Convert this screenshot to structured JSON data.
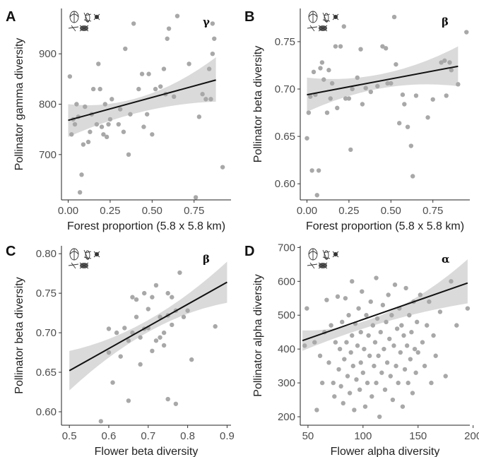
{
  "chart_data": [
    {
      "type": "scatter",
      "panel": "A",
      "corner_label": "γ",
      "xlabel": "Forest proportion (5.8 x 5.8 km)",
      "ylabel": "Pollinator gamma diversity",
      "xlim": [
        -0.04,
        0.97
      ],
      "ylim": [
        610,
        990
      ],
      "xticks": [
        0.0,
        0.25,
        0.5,
        0.75
      ],
      "xtick_labels": [
        "0.00",
        "0.25",
        "0.50",
        "0.75"
      ],
      "yticks": [
        700,
        800,
        900
      ],
      "yticks_labels": [
        "700",
        "800",
        "900"
      ],
      "fit": {
        "x0": 0.0,
        "y0": 768,
        "x1": 0.88,
        "y1": 848,
        "ci_low0": 735,
        "ci_high0": 800,
        "ci_low_mid": 785,
        "ci_high_mid": 815,
        "ci_low1": 805,
        "ci_high1": 893
      },
      "points": [
        [
          0.01,
          855
        ],
        [
          0.02,
          740
        ],
        [
          0.03,
          770
        ],
        [
          0.04,
          760
        ],
        [
          0.05,
          800
        ],
        [
          0.06,
          775
        ],
        [
          0.07,
          625
        ],
        [
          0.08,
          660
        ],
        [
          0.09,
          720
        ],
        [
          0.1,
          795
        ],
        [
          0.12,
          725
        ],
        [
          0.13,
          745
        ],
        [
          0.14,
          780
        ],
        [
          0.15,
          830
        ],
        [
          0.17,
          760
        ],
        [
          0.18,
          880
        ],
        [
          0.19,
          830
        ],
        [
          0.2,
          755
        ],
        [
          0.21,
          740
        ],
        [
          0.22,
          800
        ],
        [
          0.23,
          735
        ],
        [
          0.24,
          760
        ],
        [
          0.25,
          770
        ],
        [
          0.26,
          810
        ],
        [
          0.3,
          760
        ],
        [
          0.31,
          790
        ],
        [
          0.33,
          745
        ],
        [
          0.34,
          910
        ],
        [
          0.36,
          700
        ],
        [
          0.37,
          780
        ],
        [
          0.39,
          960
        ],
        [
          0.42,
          830
        ],
        [
          0.44,
          860
        ],
        [
          0.45,
          755
        ],
        [
          0.47,
          780
        ],
        [
          0.48,
          860
        ],
        [
          0.5,
          740
        ],
        [
          0.52,
          830
        ],
        [
          0.55,
          835
        ],
        [
          0.57,
          870
        ],
        [
          0.58,
          820
        ],
        [
          0.59,
          930
        ],
        [
          0.6,
          950
        ],
        [
          0.63,
          815
        ],
        [
          0.65,
          975
        ],
        [
          0.72,
          880
        ],
        [
          0.76,
          615
        ],
        [
          0.78,
          775
        ],
        [
          0.8,
          820
        ],
        [
          0.82,
          810
        ],
        [
          0.84,
          870
        ],
        [
          0.85,
          810
        ],
        [
          0.86,
          900
        ],
        [
          0.86,
          960
        ],
        [
          0.87,
          930
        ],
        [
          0.92,
          675
        ]
      ]
    },
    {
      "type": "scatter",
      "panel": "B",
      "corner_label": "β",
      "xlabel": "Forest proportion (5.8 x 5.8 km)",
      "ylabel": "Pollinator beta diversity",
      "xlim": [
        -0.04,
        0.97
      ],
      "ylim": [
        0.583,
        0.785
      ],
      "xticks": [
        0.0,
        0.25,
        0.5,
        0.75
      ],
      "xtick_labels": [
        "0.00",
        "0.25",
        "0.50",
        "0.75"
      ],
      "yticks": [
        0.6,
        0.65,
        0.7,
        0.75
      ],
      "yticks_labels": [
        "0.60",
        "0.65",
        "0.70",
        "0.75"
      ],
      "fit": {
        "x0": 0.0,
        "y0": 0.694,
        "x1": 0.9,
        "y1": 0.724,
        "ci_low0": 0.676,
        "ci_high0": 0.712,
        "ci_low_mid": 0.701,
        "ci_high_mid": 0.716,
        "ci_low1": 0.703,
        "ci_high1": 0.745
      },
      "points": [
        [
          0.0,
          0.648
        ],
        [
          0.01,
          0.675
        ],
        [
          0.02,
          0.692
        ],
        [
          0.03,
          0.614
        ],
        [
          0.04,
          0.718
        ],
        [
          0.05,
          0.694
        ],
        [
          0.06,
          0.588
        ],
        [
          0.07,
          0.614
        ],
        [
          0.08,
          0.722
        ],
        [
          0.09,
          0.728
        ],
        [
          0.1,
          0.71
        ],
        [
          0.12,
          0.675
        ],
        [
          0.13,
          0.72
        ],
        [
          0.14,
          0.69
        ],
        [
          0.15,
          0.706
        ],
        [
          0.17,
          0.745
        ],
        [
          0.18,
          0.68
        ],
        [
          0.2,
          0.745
        ],
        [
          0.22,
          0.766
        ],
        [
          0.23,
          0.69
        ],
        [
          0.25,
          0.69
        ],
        [
          0.26,
          0.636
        ],
        [
          0.27,
          0.7
        ],
        [
          0.3,
          0.712
        ],
        [
          0.32,
          0.742
        ],
        [
          0.33,
          0.684
        ],
        [
          0.35,
          0.701
        ],
        [
          0.38,
          0.697
        ],
        [
          0.42,
          0.703
        ],
        [
          0.45,
          0.745
        ],
        [
          0.47,
          0.743
        ],
        [
          0.48,
          0.706
        ],
        [
          0.5,
          0.706
        ],
        [
          0.52,
          0.776
        ],
        [
          0.53,
          0.726
        ],
        [
          0.55,
          0.664
        ],
        [
          0.57,
          0.694
        ],
        [
          0.58,
          0.684
        ],
        [
          0.6,
          0.66
        ],
        [
          0.62,
          0.64
        ],
        [
          0.63,
          0.608
        ],
        [
          0.65,
          0.693
        ],
        [
          0.72,
          0.67
        ],
        [
          0.75,
          0.689
        ],
        [
          0.8,
          0.728
        ],
        [
          0.82,
          0.73
        ],
        [
          0.83,
          0.693
        ],
        [
          0.85,
          0.728
        ],
        [
          0.86,
          0.72
        ],
        [
          0.9,
          0.705
        ],
        [
          0.95,
          0.76
        ]
      ]
    },
    {
      "type": "scatter",
      "panel": "C",
      "corner_label": "β",
      "xlabel": "Flower beta diversity",
      "ylabel": "Pollinator beta diversity",
      "xlim": [
        0.48,
        0.91
      ],
      "ylim": [
        0.583,
        0.81
      ],
      "xticks": [
        0.5,
        0.6,
        0.7,
        0.8,
        0.9
      ],
      "xtick_labels": [
        "0.5",
        "0.6",
        "0.7",
        "0.8",
        "0.9"
      ],
      "yticks": [
        0.6,
        0.65,
        0.7,
        0.75,
        0.8
      ],
      "yticks_labels": [
        "0.60",
        "0.65",
        "0.70",
        "0.75",
        "0.80"
      ],
      "fit": {
        "x0": 0.5,
        "y0": 0.652,
        "x1": 0.9,
        "y1": 0.764,
        "ci_low0": 0.627,
        "ci_high0": 0.677,
        "ci_low_mid": 0.701,
        "ci_high_mid": 0.716,
        "ci_low1": 0.738,
        "ci_high1": 0.79
      },
      "points": [
        [
          0.58,
          0.588
        ],
        [
          0.6,
          0.675
        ],
        [
          0.61,
          0.637
        ],
        [
          0.6,
          0.705
        ],
        [
          0.62,
          0.7
        ],
        [
          0.63,
          0.67
        ],
        [
          0.64,
          0.706
        ],
        [
          0.65,
          0.69
        ],
        [
          0.65,
          0.614
        ],
        [
          0.66,
          0.745
        ],
        [
          0.66,
          0.7
        ],
        [
          0.67,
          0.742
        ],
        [
          0.67,
          0.72
        ],
        [
          0.68,
          0.66
        ],
        [
          0.68,
          0.694
        ],
        [
          0.69,
          0.705
        ],
        [
          0.69,
          0.75
        ],
        [
          0.7,
          0.73
        ],
        [
          0.7,
          0.706
        ],
        [
          0.71,
          0.745
        ],
        [
          0.71,
          0.677
        ],
        [
          0.72,
          0.69
        ],
        [
          0.72,
          0.76
        ],
        [
          0.73,
          0.72
        ],
        [
          0.73,
          0.694
        ],
        [
          0.74,
          0.7
        ],
        [
          0.74,
          0.684
        ],
        [
          0.75,
          0.75
        ],
        [
          0.75,
          0.722
        ],
        [
          0.75,
          0.616
        ],
        [
          0.76,
          0.745
        ],
        [
          0.76,
          0.71
        ],
        [
          0.77,
          0.728
        ],
        [
          0.77,
          0.61
        ],
        [
          0.78,
          0.776
        ],
        [
          0.79,
          0.72
        ],
        [
          0.8,
          0.728
        ],
        [
          0.81,
          0.666
        ],
        [
          0.87,
          0.708
        ]
      ]
    },
    {
      "type": "scatter",
      "panel": "D",
      "corner_label": "α",
      "xlabel": "Flower alpha diversity",
      "ylabel": "Pollinator alpha diversity",
      "xlim": [
        43,
        197
      ],
      "ylim": [
        175,
        705
      ],
      "xticks": [
        50,
        100,
        150,
        200
      ],
      "xtick_labels": [
        "50",
        "100",
        "150",
        "200"
      ],
      "yticks": [
        200,
        300,
        400,
        500,
        600,
        700
      ],
      "yticks_labels": [
        "200",
        "300",
        "400",
        "500",
        "600",
        "700"
      ],
      "fit": {
        "x0": 45,
        "y0": 425,
        "x1": 195,
        "y1": 595,
        "ci_low0": 395,
        "ci_high0": 455,
        "ci_low_mid": 480,
        "ci_high_mid": 505,
        "ci_low1": 535,
        "ci_high1": 665
      },
      "points": [
        [
          47,
          410
        ],
        [
          49,
          520
        ],
        [
          56,
          420
        ],
        [
          58,
          220
        ],
        [
          61,
          380
        ],
        [
          63,
          300
        ],
        [
          65,
          450
        ],
        [
          67,
          545
        ],
        [
          69,
          360
        ],
        [
          71,
          470
        ],
        [
          73,
          300
        ],
        [
          74,
          260
        ],
        [
          75,
          420
        ],
        [
          77,
          555
        ],
        [
          78,
          340
        ],
        [
          79,
          400
        ],
        [
          80,
          290
        ],
        [
          81,
          480
        ],
        [
          82,
          240
        ],
        [
          83,
          370
        ],
        [
          84,
          550
        ],
        [
          85,
          420
        ],
        [
          86,
          320
        ],
        [
          87,
          500
        ],
        [
          88,
          270
        ],
        [
          89,
          390
        ],
        [
          90,
          600
        ],
        [
          90,
          440
        ],
        [
          91,
          350
        ],
        [
          92,
          220
        ],
        [
          93,
          475
        ],
        [
          94,
          310
        ],
        [
          95,
          410
        ],
        [
          96,
          520
        ],
        [
          97,
          280
        ],
        [
          98,
          360
        ],
        [
          98,
          450
        ],
        [
          99,
          570
        ],
        [
          100,
          330
        ],
        [
          101,
          400
        ],
        [
          102,
          230
        ],
        [
          103,
          500
        ],
        [
          104,
          300
        ],
        [
          105,
          440
        ],
        [
          106,
          380
        ],
        [
          107,
          540
        ],
        [
          108,
          260
        ],
        [
          109,
          470
        ],
        [
          110,
          350
        ],
        [
          111,
          420
        ],
        [
          112,
          610
        ],
        [
          112,
          300
        ],
        [
          113,
          490
        ],
        [
          114,
          380
        ],
        [
          115,
          200
        ],
        [
          116,
          450
        ],
        [
          117,
          330
        ],
        [
          118,
          530
        ],
        [
          119,
          400
        ],
        [
          120,
          280
        ],
        [
          121,
          480
        ],
        [
          122,
          360
        ],
        [
          123,
          560
        ],
        [
          124,
          430
        ],
        [
          125,
          320
        ],
        [
          126,
          500
        ],
        [
          127,
          250
        ],
        [
          128,
          410
        ],
        [
          129,
          590
        ],
        [
          130,
          350
        ],
        [
          131,
          460
        ],
        [
          132,
          300
        ],
        [
          133,
          520
        ],
        [
          134,
          390
        ],
        [
          135,
          470
        ],
        [
          136,
          230
        ],
        [
          137,
          440
        ],
        [
          138,
          340
        ],
        [
          139,
          580
        ],
        [
          140,
          410
        ],
        [
          141,
          300
        ],
        [
          142,
          500
        ],
        [
          143,
          370
        ],
        [
          144,
          450
        ],
        [
          145,
          270
        ],
        [
          146,
          540
        ],
        [
          147,
          400
        ],
        [
          148,
          330
        ],
        [
          149,
          480
        ],
        [
          150,
          390
        ],
        [
          152,
          560
        ],
        [
          154,
          420
        ],
        [
          156,
          350
        ],
        [
          158,
          470
        ],
        [
          160,
          540
        ],
        [
          162,
          300
        ],
        [
          164,
          440
        ],
        [
          166,
          380
        ],
        [
          170,
          510
        ],
        [
          175,
          320
        ],
        [
          180,
          600
        ],
        [
          185,
          470
        ],
        [
          195,
          520
        ]
      ]
    }
  ]
}
